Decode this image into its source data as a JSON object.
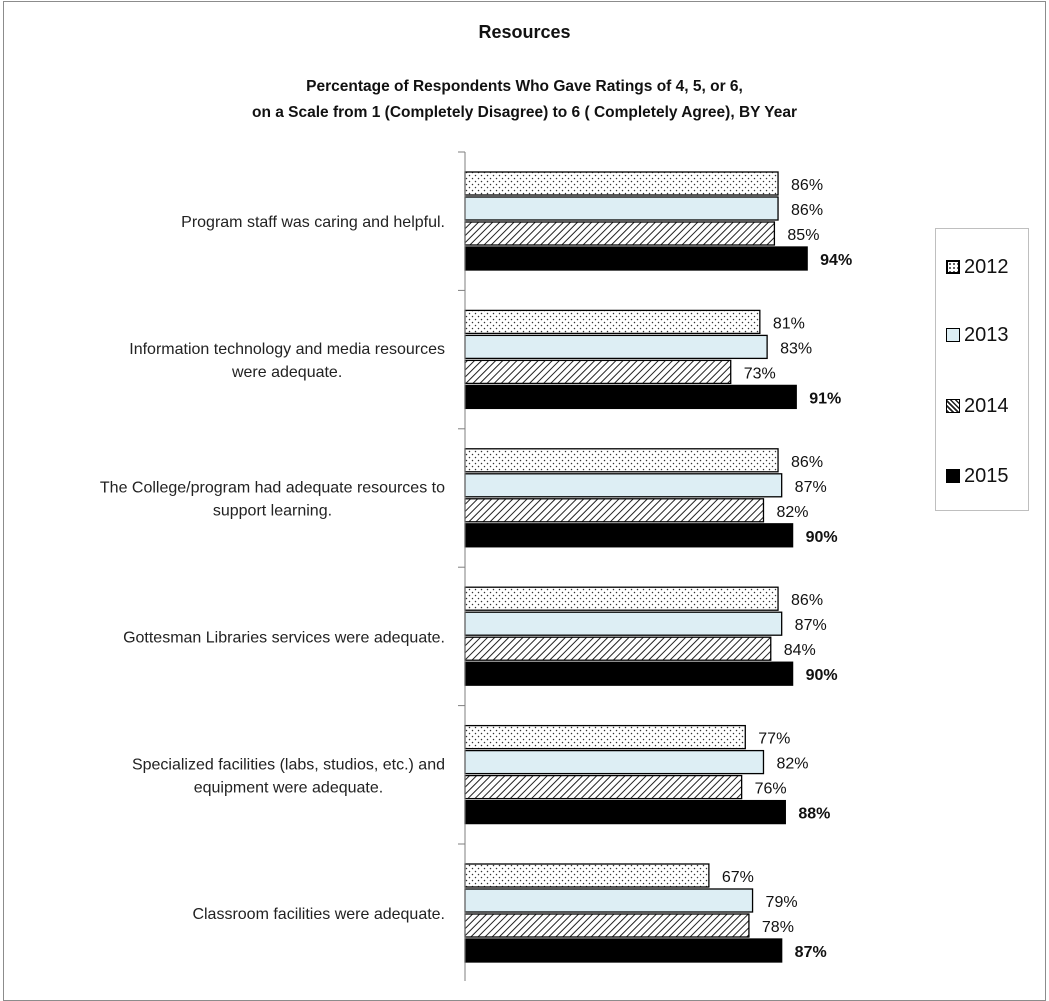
{
  "chart_data": {
    "type": "bar",
    "orientation": "horizontal",
    "title": "Resources",
    "subtitle_lines": [
      "Percentage of Respondents Who Gave Ratings of 4, 5, or 6,",
      "on a Scale from 1 (Completely Disagree) to 6 ( Completely Agree), BY Year"
    ],
    "categories": [
      [
        "Program staff was caring and helpful."
      ],
      [
        "Information technology and media resources",
        "were adequate."
      ],
      [
        "The College/program had adequate resources to",
        "support learning."
      ],
      [
        "Gottesman Libraries services were adequate."
      ],
      [
        "Specialized facilities (labs, studios, etc.) and",
        "equipment were adequate."
      ],
      [
        "Classroom facilities were adequate."
      ]
    ],
    "series": [
      {
        "name": "2012",
        "values": [
          86,
          81,
          86,
          86,
          77,
          67
        ],
        "pattern": "dots",
        "fill": "#ffffff",
        "bold_labels": false
      },
      {
        "name": "2013",
        "values": [
          86,
          83,
          87,
          87,
          82,
          79
        ],
        "pattern": "solid",
        "fill": "#ddeef4",
        "bold_labels": false
      },
      {
        "name": "2014",
        "values": [
          85,
          73,
          82,
          84,
          76,
          78
        ],
        "pattern": "hatch",
        "fill": "#ffffff",
        "bold_labels": false
      },
      {
        "name": "2015",
        "values": [
          94,
          91,
          90,
          90,
          88,
          87
        ],
        "pattern": "solid",
        "fill": "#000000",
        "bold_labels": true
      }
    ],
    "value_suffix": "%",
    "legend_position": "right",
    "grid": false
  }
}
